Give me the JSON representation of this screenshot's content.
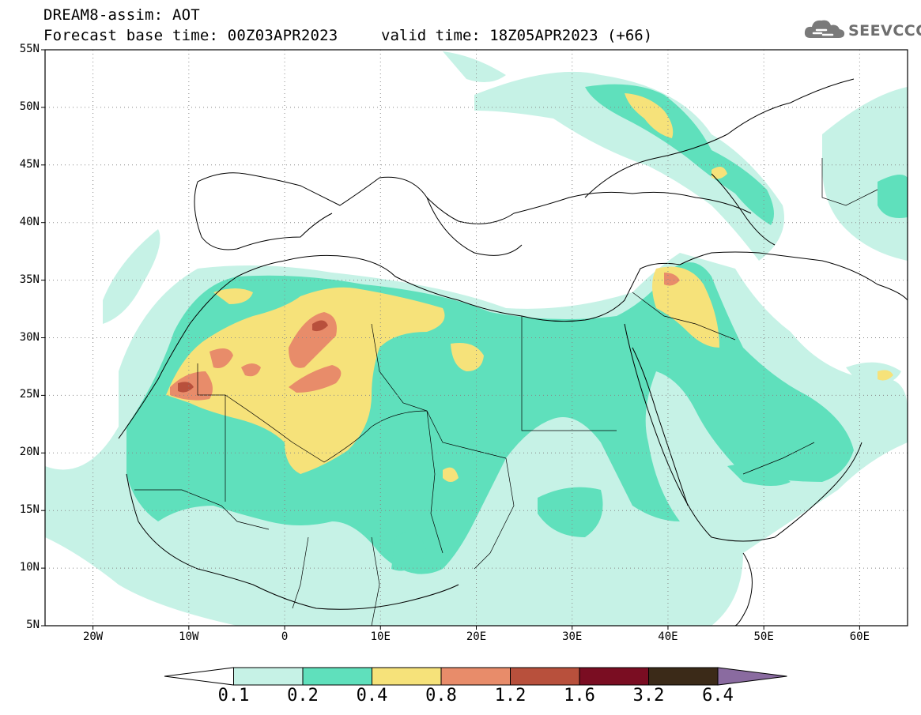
{
  "header": {
    "title": "DREAM8-assim: AOT",
    "base_time": "Forecast base time: 00Z03APR2023",
    "valid_time": "valid time: 18Z05APR2023 (+66)",
    "logo_text": "SEEVCCC"
  },
  "map": {
    "lon_range": [
      -25,
      65
    ],
    "lat_range": [
      5,
      55
    ],
    "lat_labels": [
      "55N",
      "50N",
      "45N",
      "40N",
      "35N",
      "30N",
      "25N",
      "20N",
      "15N",
      "10N",
      "5N"
    ],
    "lon_labels": [
      "20W",
      "10W",
      "0",
      "10E",
      "20E",
      "30E",
      "40E",
      "50E",
      "60E"
    ],
    "gridlines": true
  },
  "colorbar": {
    "labels": [
      "0.1",
      "0.2",
      "0.4",
      "0.8",
      "1.2",
      "1.6",
      "3.2",
      "6.4"
    ],
    "colors": [
      "#ffffff",
      "#c6f2e6",
      "#5fe0bc",
      "#f6e27a",
      "#e88c6a",
      "#b8503c",
      "#7a0d22",
      "#3b2a18",
      "#8a6ba0"
    ]
  }
}
